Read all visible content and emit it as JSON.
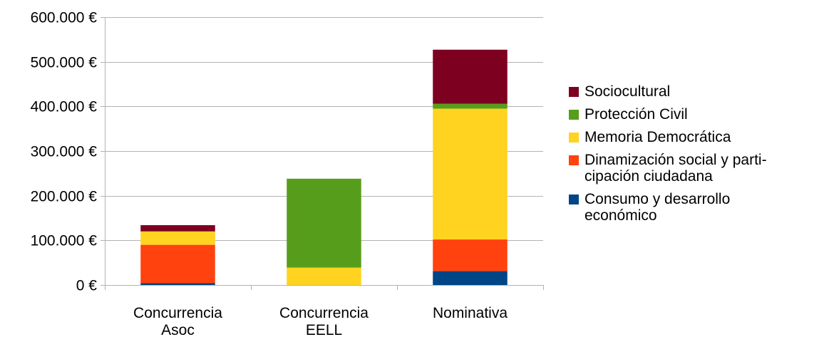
{
  "chart_data": {
    "type": "bar",
    "stacked": true,
    "categories": [
      "Concurrencia Asoc",
      "Concurrencia EELL",
      "Nominativa"
    ],
    "category_lines": [
      [
        "Concurrencia",
        "Asoc"
      ],
      [
        "Concurrencia",
        "EELL"
      ],
      [
        "Nominativa"
      ]
    ],
    "series": [
      {
        "name": "Consumo y desarrollo económico",
        "color": "#004586",
        "values": [
          4000,
          0,
          31000
        ]
      },
      {
        "name": "Dinamización social y participación ciudadana",
        "color": "#ff420e",
        "values": [
          86000,
          0,
          71000
        ]
      },
      {
        "name": "Memoria Democrática",
        "color": "#ffd320",
        "values": [
          30000,
          39000,
          293000
        ]
      },
      {
        "name": "Protección Civil",
        "color": "#579d1c",
        "values": [
          0,
          199000,
          11000
        ]
      },
      {
        "name": "Sociocultural",
        "color": "#7e0021",
        "values": [
          14000,
          0,
          121000
        ]
      }
    ],
    "ylim": [
      0,
      600000
    ],
    "y_ticks": [
      "0 €",
      "100.000 €",
      "200.000 €",
      "300.000 €",
      "400.000 €",
      "500.000 €",
      "600.000 €"
    ],
    "grid": true,
    "legend_position": "right",
    "legend_items": [
      {
        "lines": [
          "Sociocultural"
        ],
        "color": "#7e0021"
      },
      {
        "lines": [
          "Protección Civil"
        ],
        "color": "#579d1c"
      },
      {
        "lines": [
          "Memoria Democrática"
        ],
        "color": "#ffd320"
      },
      {
        "lines": [
          "Dinamización social y parti-",
          "cipación ciudadana"
        ],
        "color": "#ff420e"
      },
      {
        "lines": [
          "Consumo y desarrollo",
          "económico"
        ],
        "color": "#004586"
      }
    ]
  }
}
